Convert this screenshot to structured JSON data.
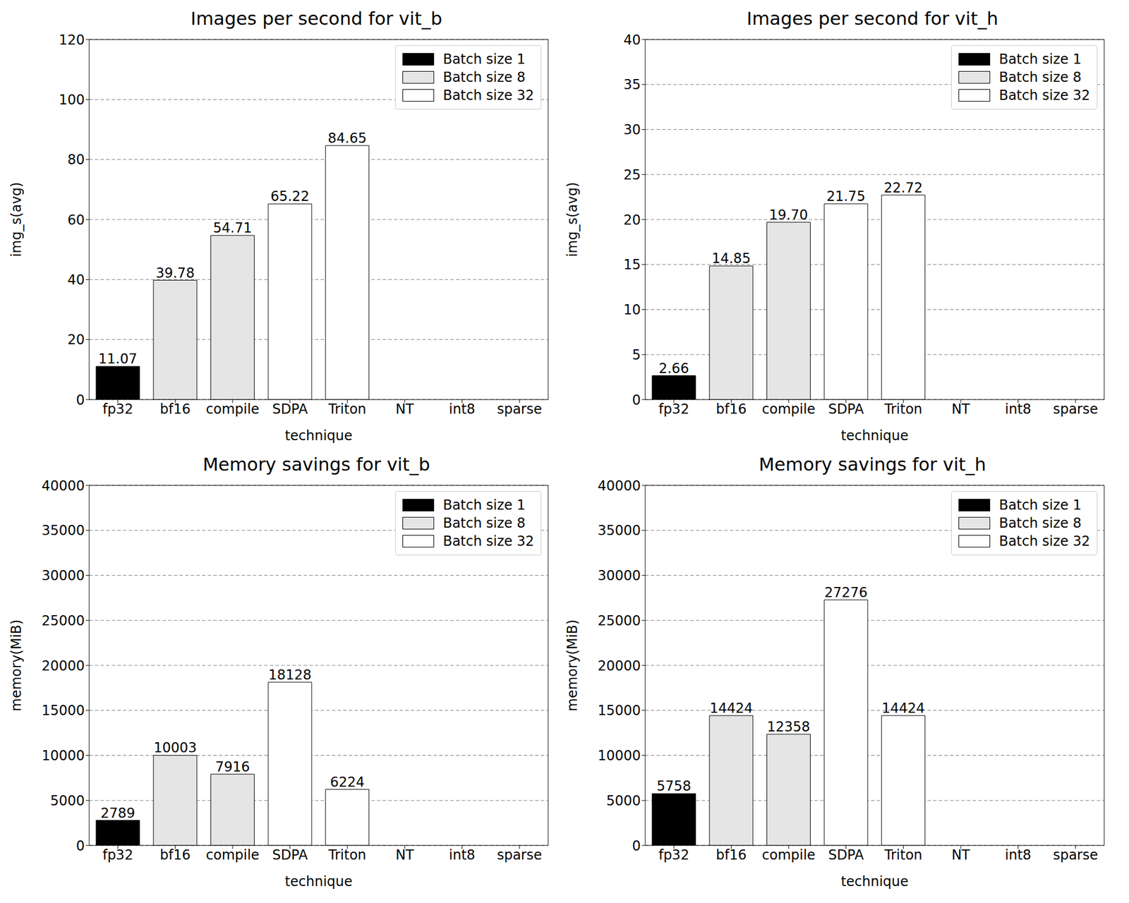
{
  "chart_data": [
    {
      "type": "bar",
      "title": "Images per second for vit_b",
      "x_label": "technique",
      "y_label": "img_s(avg)",
      "categories": [
        "fp32",
        "bf16",
        "compile",
        "SDPA",
        "Triton",
        "NT",
        "int8",
        "sparse"
      ],
      "series": [
        {
          "name": "Batch size 1",
          "color": "#000000",
          "values": [
            11.07,
            null,
            null,
            null,
            null,
            null,
            null,
            null
          ]
        },
        {
          "name": "Batch size 8",
          "color": "#e5e5e5",
          "values": [
            null,
            39.78,
            54.71,
            null,
            null,
            null,
            null,
            null
          ]
        },
        {
          "name": "Batch size 32",
          "color": "#ffffff",
          "values": [
            null,
            null,
            null,
            65.22,
            84.65,
            null,
            null,
            null
          ]
        }
      ],
      "ylim": [
        0,
        120
      ],
      "yticks": [
        0,
        20,
        40,
        60,
        80,
        100,
        120
      ],
      "grid": true,
      "legend": "upper right",
      "data_labels": true
    },
    {
      "type": "bar",
      "title": "Images per second for vit_h",
      "x_label": "technique",
      "y_label": "img_s(avg)",
      "categories": [
        "fp32",
        "bf16",
        "compile",
        "SDPA",
        "Triton",
        "NT",
        "int8",
        "sparse"
      ],
      "series": [
        {
          "name": "Batch size 1",
          "color": "#000000",
          "values": [
            2.66,
            null,
            null,
            null,
            null,
            null,
            null,
            null
          ]
        },
        {
          "name": "Batch size 8",
          "color": "#e5e5e5",
          "values": [
            null,
            14.85,
            19.7,
            null,
            null,
            null,
            null,
            null
          ],
          "value_labels": [
            null,
            "14.85",
            "19.70",
            null,
            null,
            null,
            null,
            null
          ]
        },
        {
          "name": "Batch size 32",
          "color": "#ffffff",
          "values": [
            null,
            null,
            null,
            21.75,
            22.72,
            null,
            null,
            null
          ]
        }
      ],
      "ylim": [
        0,
        40
      ],
      "yticks": [
        0,
        5,
        10,
        15,
        20,
        25,
        30,
        35,
        40
      ],
      "grid": true,
      "legend": "upper right",
      "data_labels": true
    },
    {
      "type": "bar",
      "title": "Memory savings for vit_b",
      "x_label": "technique",
      "y_label": "memory(MiB)",
      "categories": [
        "fp32",
        "bf16",
        "compile",
        "SDPA",
        "Triton",
        "NT",
        "int8",
        "sparse"
      ],
      "series": [
        {
          "name": "Batch size 1",
          "color": "#000000",
          "values": [
            2789,
            null,
            null,
            null,
            null,
            null,
            null,
            null
          ]
        },
        {
          "name": "Batch size 8",
          "color": "#e5e5e5",
          "values": [
            null,
            10003,
            7916,
            null,
            null,
            null,
            null,
            null
          ]
        },
        {
          "name": "Batch size 32",
          "color": "#ffffff",
          "values": [
            null,
            null,
            null,
            18128,
            6224,
            null,
            null,
            null
          ]
        }
      ],
      "ylim": [
        0,
        40000
      ],
      "yticks": [
        0,
        5000,
        10000,
        15000,
        20000,
        25000,
        30000,
        35000,
        40000
      ],
      "grid": true,
      "legend": "upper right",
      "data_labels": true
    },
    {
      "type": "bar",
      "title": "Memory savings for vit_h",
      "x_label": "technique",
      "y_label": "memory(MiB)",
      "categories": [
        "fp32",
        "bf16",
        "compile",
        "SDPA",
        "Triton",
        "NT",
        "int8",
        "sparse"
      ],
      "series": [
        {
          "name": "Batch size 1",
          "color": "#000000",
          "values": [
            5758,
            null,
            null,
            null,
            null,
            null,
            null,
            null
          ]
        },
        {
          "name": "Batch size 8",
          "color": "#e5e5e5",
          "values": [
            null,
            14424,
            12358,
            null,
            null,
            null,
            null,
            null
          ]
        },
        {
          "name": "Batch size 32",
          "color": "#ffffff",
          "values": [
            null,
            null,
            null,
            27276,
            14424,
            null,
            null,
            null
          ]
        }
      ],
      "ylim": [
        0,
        40000
      ],
      "yticks": [
        0,
        5000,
        10000,
        15000,
        20000,
        25000,
        30000,
        35000,
        40000
      ],
      "grid": true,
      "legend": "upper right",
      "data_labels": true
    }
  ]
}
